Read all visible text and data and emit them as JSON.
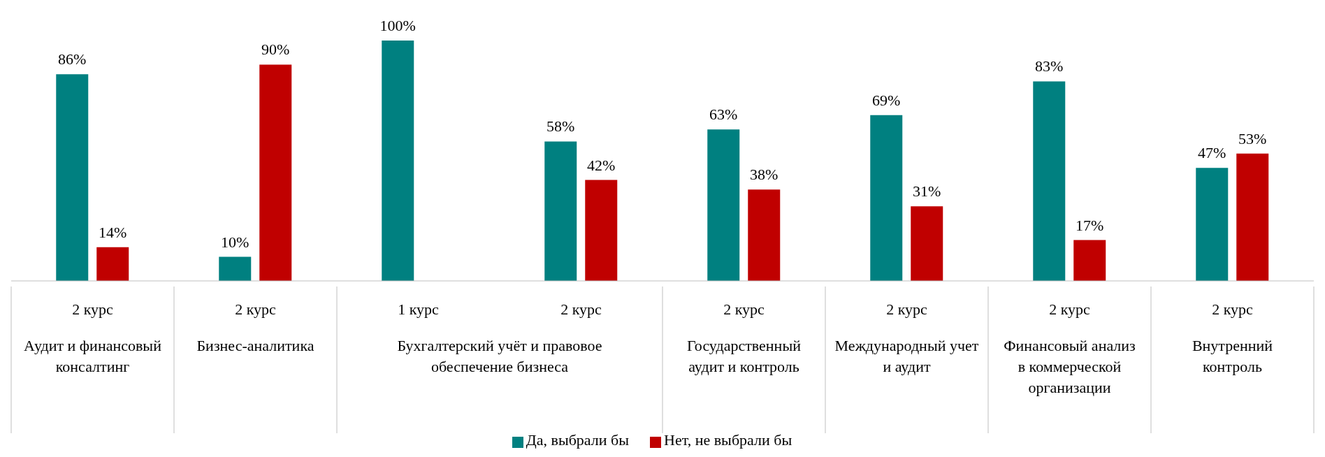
{
  "chart_data": {
    "type": "bar",
    "categories": [
      "2 курс",
      "2 курс",
      "1 курс",
      "2 курс",
      "2 курс",
      "2 курс",
      "2 курс",
      "2 курс"
    ],
    "annotations": [
      "Аудит и финансовый консалтинг",
      "Бизнес-аналитика",
      "Бухгалтерский учёт и правовое обеспечение бизнеса",
      "Государственный аудит и контроль",
      "Международный учет и аудит",
      "Финансовый анализ в коммерческой организации",
      "Внутренний контроль"
    ],
    "series": [
      {
        "name": "Да, выбрали бы",
        "color": "#008080",
        "values": [
          86,
          10,
          100,
          58,
          63,
          69,
          83,
          47
        ],
        "value_labels": [
          "86%",
          "10%",
          "100%",
          "58%",
          "63%",
          "69%",
          "83%",
          "47%"
        ]
      },
      {
        "name": "Нет, не выбрали бы",
        "color": "#c00000",
        "values": [
          14,
          90,
          null,
          42,
          38,
          31,
          17,
          53
        ],
        "value_labels": [
          "14%",
          "90%",
          null,
          "42%",
          "38%",
          "31%",
          "17%",
          "53%"
        ]
      }
    ],
    "legend": "bottom",
    "grid": false
  }
}
